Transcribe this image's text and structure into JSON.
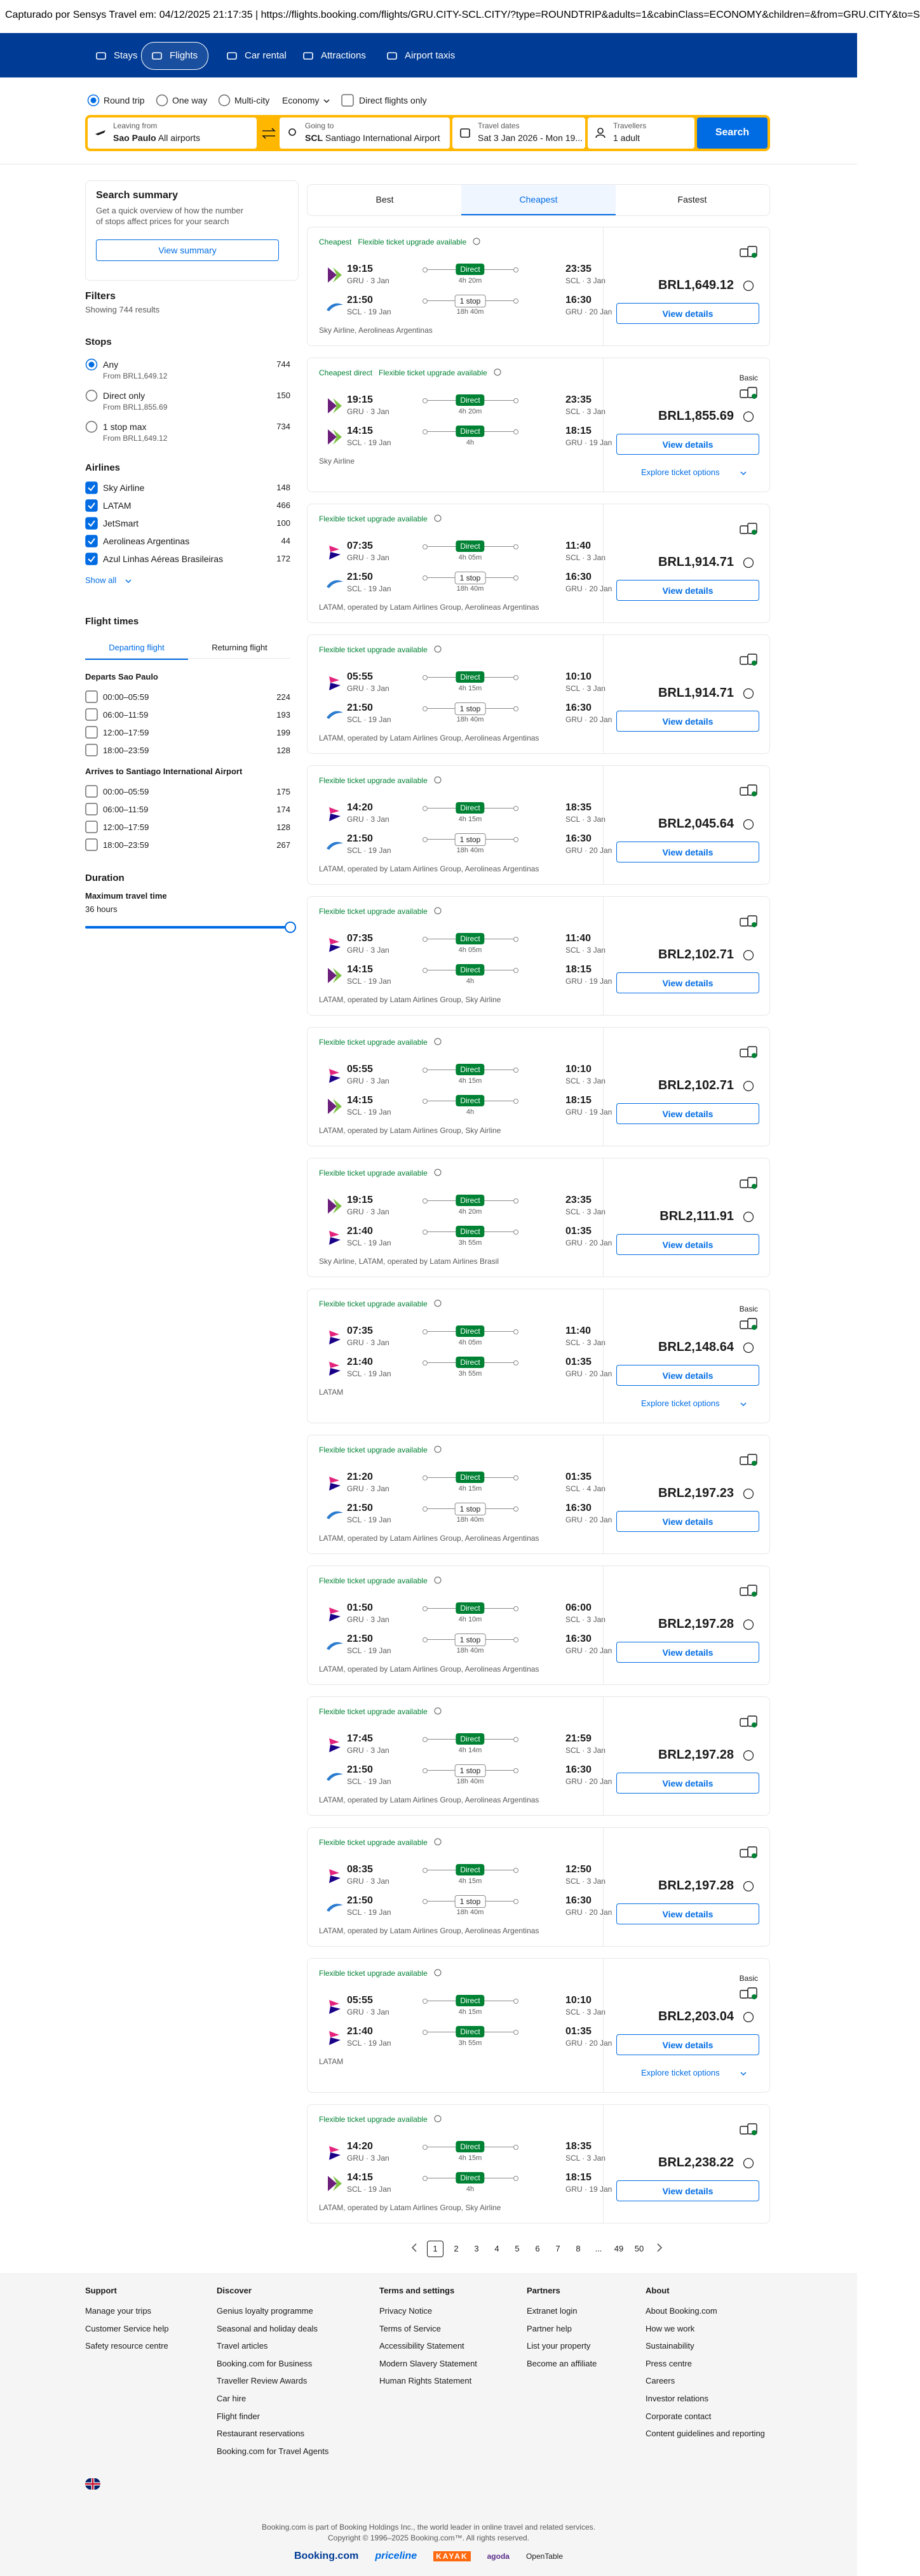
{
  "capture_bar": "Capturado por Sensys Travel em: 04/12/2025 21:17:35  |  https://flights.booking.com/flights/GRU.CITY-SCL.CITY/?type=ROUNDTRIP&adults=1&cabinClass=ECONOMY&children=&from=GRU.CITY&to=S",
  "nav": [
    {
      "label": "Stays",
      "active": false
    },
    {
      "label": "Flights",
      "active": true
    },
    {
      "label": "Car rental",
      "active": false
    },
    {
      "label": "Attractions",
      "active": false
    },
    {
      "label": "Airport taxis",
      "active": false
    }
  ],
  "trip_types": [
    {
      "label": "Round trip",
      "selected": true
    },
    {
      "label": "One way",
      "selected": false
    },
    {
      "label": "Multi-city",
      "selected": false
    }
  ],
  "cabin": "Economy",
  "direct_only": "Direct flights only",
  "search": {
    "from_label": "Leaving from",
    "from_city": "Sao Paulo",
    "from_detail": "All airports",
    "to_label": "Going to",
    "to_code": "SCL",
    "to_detail": "Santiago International Airport",
    "dates_label": "Travel dates",
    "dates": "Sat 3 Jan 2026 - Mon 19...",
    "travellers_label": "Travellers",
    "travellers": "1 adult",
    "button": "Search"
  },
  "sidebar": {
    "summary": {
      "title": "Search summary",
      "text": "Get a quick overview of how the number of stops affect prices for your search",
      "button": "View summary"
    },
    "filters_title": "Filters",
    "results_count": "Showing 744 results",
    "stops": {
      "title": "Stops",
      "options": [
        {
          "label": "Any",
          "from": "From BRL1,649.12",
          "count": 744,
          "selected": true
        },
        {
          "label": "Direct only",
          "from": "From BRL1,855.69",
          "count": 150,
          "selected": false
        },
        {
          "label": "1 stop max",
          "from": "From BRL1,649.12",
          "count": 734,
          "selected": false
        }
      ]
    },
    "airlines": {
      "title": "Airlines",
      "options": [
        {
          "label": "Sky Airline",
          "count": 148,
          "checked": true
        },
        {
          "label": "LATAM",
          "count": 466,
          "checked": true
        },
        {
          "label": "JetSmart",
          "count": 100,
          "checked": true
        },
        {
          "label": "Aerolineas Argentinas",
          "count": 44,
          "checked": true
        },
        {
          "label": "Azul Linhas Aéreas Brasileiras",
          "count": 172,
          "checked": true
        }
      ],
      "show_all": "Show all"
    },
    "flight_times": {
      "title": "Flight times",
      "tabs": [
        {
          "label": "Departing flight",
          "active": true
        },
        {
          "label": "Returning flight",
          "active": false
        }
      ],
      "groups": [
        {
          "title": "Departs Sao Paulo",
          "options": [
            {
              "label": "00:00–05:59",
              "count": 224
            },
            {
              "label": "06:00–11:59",
              "count": 193
            },
            {
              "label": "12:00–17:59",
              "count": 199
            },
            {
              "label": "18:00–23:59",
              "count": 128
            }
          ]
        },
        {
          "title": "Arrives to Santiago International Airport",
          "options": [
            {
              "label": "00:00–05:59",
              "count": 175
            },
            {
              "label": "06:00–11:59",
              "count": 174
            },
            {
              "label": "12:00–17:59",
              "count": 128
            },
            {
              "label": "18:00–23:59",
              "count": 267
            }
          ]
        }
      ]
    },
    "duration": {
      "title": "Duration",
      "label": "Maximum travel time",
      "value": "36 hours"
    }
  },
  "sort_tabs": [
    {
      "label": "Best",
      "active": false
    },
    {
      "label": "Cheapest",
      "active": true
    },
    {
      "label": "Fastest",
      "active": false
    }
  ],
  "results": [
    {
      "tags": [
        "Cheapest",
        "Flexible ticket upgrade available"
      ],
      "legs": [
        {
          "logo": "sky",
          "depart_time": "19:15",
          "depart_info": "GRU · 3 Jan",
          "stops": "Direct",
          "duration": "4h 20m",
          "arrive_time": "23:35",
          "arrive_info": "SCL · 3 Jan"
        },
        {
          "logo": "aerolineas",
          "depart_time": "21:50",
          "depart_info": "SCL · 19 Jan",
          "stops": "1 stop",
          "duration": "18h 40m",
          "arrive_time": "16:30",
          "arrive_info": "GRU · 20 Jan"
        }
      ],
      "airlines": "Sky Airline, Aerolineas Argentinas",
      "price": "BRL1,649.12",
      "button": "View details"
    },
    {
      "tags": [
        "Cheapest direct",
        "Flexible ticket upgrade available"
      ],
      "fare": "Basic",
      "legs": [
        {
          "logo": "sky",
          "depart_time": "19:15",
          "depart_info": "GRU · 3 Jan",
          "stops": "Direct",
          "duration": "4h 20m",
          "arrive_time": "23:35",
          "arrive_info": "SCL · 3 Jan"
        },
        {
          "logo": "sky",
          "depart_time": "14:15",
          "depart_info": "SCL · 19 Jan",
          "stops": "Direct",
          "duration": "4h",
          "arrive_time": "18:15",
          "arrive_info": "GRU · 19 Jan"
        }
      ],
      "airlines": "Sky Airline",
      "price": "BRL1,855.69",
      "button": "View details",
      "explore": "Explore ticket options"
    },
    {
      "tags": [
        "Flexible ticket upgrade available"
      ],
      "legs": [
        {
          "logo": "latam",
          "depart_time": "07:35",
          "depart_info": "GRU · 3 Jan",
          "stops": "Direct",
          "duration": "4h 05m",
          "arrive_time": "11:40",
          "arrive_info": "SCL · 3 Jan"
        },
        {
          "logo": "aerolineas",
          "depart_time": "21:50",
          "depart_info": "SCL · 19 Jan",
          "stops": "1 stop",
          "duration": "18h 40m",
          "arrive_time": "16:30",
          "arrive_info": "GRU · 20 Jan"
        }
      ],
      "airlines": "LATAM, operated by Latam Airlines Group, Aerolineas Argentinas",
      "price": "BRL1,914.71",
      "button": "View details"
    },
    {
      "tags": [
        "Flexible ticket upgrade available"
      ],
      "legs": [
        {
          "logo": "latam",
          "depart_time": "05:55",
          "depart_info": "GRU · 3 Jan",
          "stops": "Direct",
          "duration": "4h 15m",
          "arrive_time": "10:10",
          "arrive_info": "SCL · 3 Jan"
        },
        {
          "logo": "aerolineas",
          "depart_time": "21:50",
          "depart_info": "SCL · 19 Jan",
          "stops": "1 stop",
          "duration": "18h 40m",
          "arrive_time": "16:30",
          "arrive_info": "GRU · 20 Jan"
        }
      ],
      "airlines": "LATAM, operated by Latam Airlines Group, Aerolineas Argentinas",
      "price": "BRL1,914.71",
      "button": "View details"
    },
    {
      "tags": [
        "Flexible ticket upgrade available"
      ],
      "legs": [
        {
          "logo": "latam",
          "depart_time": "14:20",
          "depart_info": "GRU · 3 Jan",
          "stops": "Direct",
          "duration": "4h 15m",
          "arrive_time": "18:35",
          "arrive_info": "SCL · 3 Jan"
        },
        {
          "logo": "aerolineas",
          "depart_time": "21:50",
          "depart_info": "SCL · 19 Jan",
          "stops": "1 stop",
          "duration": "18h 40m",
          "arrive_time": "16:30",
          "arrive_info": "GRU · 20 Jan"
        }
      ],
      "airlines": "LATAM, operated by Latam Airlines Group, Aerolineas Argentinas",
      "price": "BRL2,045.64",
      "button": "View details"
    },
    {
      "tags": [
        "Flexible ticket upgrade available"
      ],
      "legs": [
        {
          "logo": "latam",
          "depart_time": "07:35",
          "depart_info": "GRU · 3 Jan",
          "stops": "Direct",
          "duration": "4h 05m",
          "arrive_time": "11:40",
          "arrive_info": "SCL · 3 Jan"
        },
        {
          "logo": "sky",
          "depart_time": "14:15",
          "depart_info": "SCL · 19 Jan",
          "stops": "Direct",
          "duration": "4h",
          "arrive_time": "18:15",
          "arrive_info": "GRU · 19 Jan"
        }
      ],
      "airlines": "LATAM, operated by Latam Airlines Group, Sky Airline",
      "price": "BRL2,102.71",
      "button": "View details"
    },
    {
      "tags": [
        "Flexible ticket upgrade available"
      ],
      "legs": [
        {
          "logo": "latam",
          "depart_time": "05:55",
          "depart_info": "GRU · 3 Jan",
          "stops": "Direct",
          "duration": "4h 15m",
          "arrive_time": "10:10",
          "arrive_info": "SCL · 3 Jan"
        },
        {
          "logo": "sky",
          "depart_time": "14:15",
          "depart_info": "SCL · 19 Jan",
          "stops": "Direct",
          "duration": "4h",
          "arrive_time": "18:15",
          "arrive_info": "GRU · 19 Jan"
        }
      ],
      "airlines": "LATAM, operated by Latam Airlines Group, Sky Airline",
      "price": "BRL2,102.71",
      "button": "View details"
    },
    {
      "tags": [
        "Flexible ticket upgrade available"
      ],
      "legs": [
        {
          "logo": "sky",
          "depart_time": "19:15",
          "depart_info": "GRU · 3 Jan",
          "stops": "Direct",
          "duration": "4h 20m",
          "arrive_time": "23:35",
          "arrive_info": "SCL · 3 Jan"
        },
        {
          "logo": "latam",
          "depart_time": "21:40",
          "depart_info": "SCL · 19 Jan",
          "stops": "Direct",
          "duration": "3h 55m",
          "arrive_time": "01:35",
          "arrive_info": "GRU · 20 Jan"
        }
      ],
      "airlines": "Sky Airline, LATAM, operated by Latam Airlines Brasil",
      "price": "BRL2,111.91",
      "button": "View details"
    },
    {
      "tags": [
        "Flexible ticket upgrade available"
      ],
      "fare": "Basic",
      "legs": [
        {
          "logo": "latam",
          "depart_time": "07:35",
          "depart_info": "GRU · 3 Jan",
          "stops": "Direct",
          "duration": "4h 05m",
          "arrive_time": "11:40",
          "arrive_info": "SCL · 3 Jan"
        },
        {
          "logo": "latam",
          "depart_time": "21:40",
          "depart_info": "SCL · 19 Jan",
          "stops": "Direct",
          "duration": "3h 55m",
          "arrive_time": "01:35",
          "arrive_info": "GRU · 20 Jan"
        }
      ],
      "airlines": "LATAM",
      "price": "BRL2,148.64",
      "button": "View details",
      "explore": "Explore ticket options"
    },
    {
      "tags": [
        "Flexible ticket upgrade available"
      ],
      "legs": [
        {
          "logo": "latam",
          "depart_time": "21:20",
          "depart_info": "GRU · 3 Jan",
          "stops": "Direct",
          "duration": "4h 15m",
          "arrive_time": "01:35",
          "arrive_info": "SCL · 4 Jan"
        },
        {
          "logo": "aerolineas",
          "depart_time": "21:50",
          "depart_info": "SCL · 19 Jan",
          "stops": "1 stop",
          "duration": "18h 40m",
          "arrive_time": "16:30",
          "arrive_info": "GRU · 20 Jan"
        }
      ],
      "airlines": "LATAM, operated by Latam Airlines Group, Aerolineas Argentinas",
      "price": "BRL2,197.23",
      "button": "View details"
    },
    {
      "tags": [
        "Flexible ticket upgrade available"
      ],
      "legs": [
        {
          "logo": "latam",
          "depart_time": "01:50",
          "depart_info": "GRU · 3 Jan",
          "stops": "Direct",
          "duration": "4h 10m",
          "arrive_time": "06:00",
          "arrive_info": "SCL · 3 Jan"
        },
        {
          "logo": "aerolineas",
          "depart_time": "21:50",
          "depart_info": "SCL · 19 Jan",
          "stops": "1 stop",
          "duration": "18h 40m",
          "arrive_time": "16:30",
          "arrive_info": "GRU · 20 Jan"
        }
      ],
      "airlines": "LATAM, operated by Latam Airlines Group, Aerolineas Argentinas",
      "price": "BRL2,197.28",
      "button": "View details"
    },
    {
      "tags": [
        "Flexible ticket upgrade available"
      ],
      "legs": [
        {
          "logo": "latam",
          "depart_time": "17:45",
          "depart_info": "GRU · 3 Jan",
          "stops": "Direct",
          "duration": "4h 14m",
          "arrive_time": "21:59",
          "arrive_info": "SCL · 3 Jan"
        },
        {
          "logo": "aerolineas",
          "depart_time": "21:50",
          "depart_info": "SCL · 19 Jan",
          "stops": "1 stop",
          "duration": "18h 40m",
          "arrive_time": "16:30",
          "arrive_info": "GRU · 20 Jan"
        }
      ],
      "airlines": "LATAM, operated by Latam Airlines Group, Aerolineas Argentinas",
      "price": "BRL2,197.28",
      "button": "View details"
    },
    {
      "tags": [
        "Flexible ticket upgrade available"
      ],
      "legs": [
        {
          "logo": "latam",
          "depart_time": "08:35",
          "depart_info": "GRU · 3 Jan",
          "stops": "Direct",
          "duration": "4h 15m",
          "arrive_time": "12:50",
          "arrive_info": "SCL · 3 Jan"
        },
        {
          "logo": "aerolineas",
          "depart_time": "21:50",
          "depart_info": "SCL · 19 Jan",
          "stops": "1 stop",
          "duration": "18h 40m",
          "arrive_time": "16:30",
          "arrive_info": "GRU · 20 Jan"
        }
      ],
      "airlines": "LATAM, operated by Latam Airlines Group, Aerolineas Argentinas",
      "price": "BRL2,197.28",
      "button": "View details"
    },
    {
      "tags": [
        "Flexible ticket upgrade available"
      ],
      "fare": "Basic",
      "legs": [
        {
          "logo": "latam",
          "depart_time": "05:55",
          "depart_info": "GRU · 3 Jan",
          "stops": "Direct",
          "duration": "4h 15m",
          "arrive_time": "10:10",
          "arrive_info": "SCL · 3 Jan"
        },
        {
          "logo": "latam",
          "depart_time": "21:40",
          "depart_info": "SCL · 19 Jan",
          "stops": "Direct",
          "duration": "3h 55m",
          "arrive_time": "01:35",
          "arrive_info": "GRU · 20 Jan"
        }
      ],
      "airlines": "LATAM",
      "price": "BRL2,203.04",
      "button": "View details",
      "explore": "Explore ticket options"
    },
    {
      "tags": [
        "Flexible ticket upgrade available"
      ],
      "legs": [
        {
          "logo": "latam",
          "depart_time": "14:20",
          "depart_info": "GRU · 3 Jan",
          "stops": "Direct",
          "duration": "4h 15m",
          "arrive_time": "18:35",
          "arrive_info": "SCL · 3 Jan"
        },
        {
          "logo": "sky",
          "depart_time": "14:15",
          "depart_info": "SCL · 19 Jan",
          "stops": "Direct",
          "duration": "4h",
          "arrive_time": "18:15",
          "arrive_info": "GRU · 19 Jan"
        }
      ],
      "airlines": "LATAM, operated by Latam Airlines Group, Sky Airline",
      "price": "BRL2,238.22",
      "button": "View details"
    }
  ],
  "pagination": [
    {
      "label": "1",
      "current": true
    },
    {
      "label": "2"
    },
    {
      "label": "3"
    },
    {
      "label": "4"
    },
    {
      "label": "5"
    },
    {
      "label": "6"
    },
    {
      "label": "7"
    },
    {
      "label": "8"
    },
    {
      "label": "..."
    },
    {
      "label": "49"
    },
    {
      "label": "50"
    }
  ],
  "footer": {
    "columns": [
      {
        "title": "Support",
        "links": [
          "Manage your trips",
          "Customer Service help",
          "Safety resource centre"
        ]
      },
      {
        "title": "Discover",
        "links": [
          "Genius loyalty programme",
          "Seasonal and holiday deals",
          "Travel articles",
          "Booking.com for Business",
          "Traveller Review Awards",
          "Car hire",
          "Flight finder",
          "Restaurant reservations",
          "Booking.com for Travel Agents"
        ]
      },
      {
        "title": "Terms and settings",
        "links": [
          "Privacy Notice",
          "Terms of Service",
          "Accessibility Statement",
          "Modern Slavery Statement",
          "Human Rights Statement"
        ]
      },
      {
        "title": "Partners",
        "links": [
          "Extranet login",
          "Partner help",
          "List your property",
          "Become an affiliate"
        ]
      },
      {
        "title": "About",
        "links": [
          "About Booking.com",
          "How we work",
          "Sustainability",
          "Press centre",
          "Careers",
          "Investor relations",
          "Corporate contact",
          "Content guidelines and reporting"
        ]
      }
    ],
    "note": "Booking.com is part of Booking Holdings Inc., the world leader in online travel and related services.",
    "copyright": "Copyright © 1996–2025 Booking.com™. All rights reserved.",
    "brands": [
      "Booking.com",
      "priceline",
      "KAYAK",
      "agoda",
      "OpenTable"
    ]
  }
}
